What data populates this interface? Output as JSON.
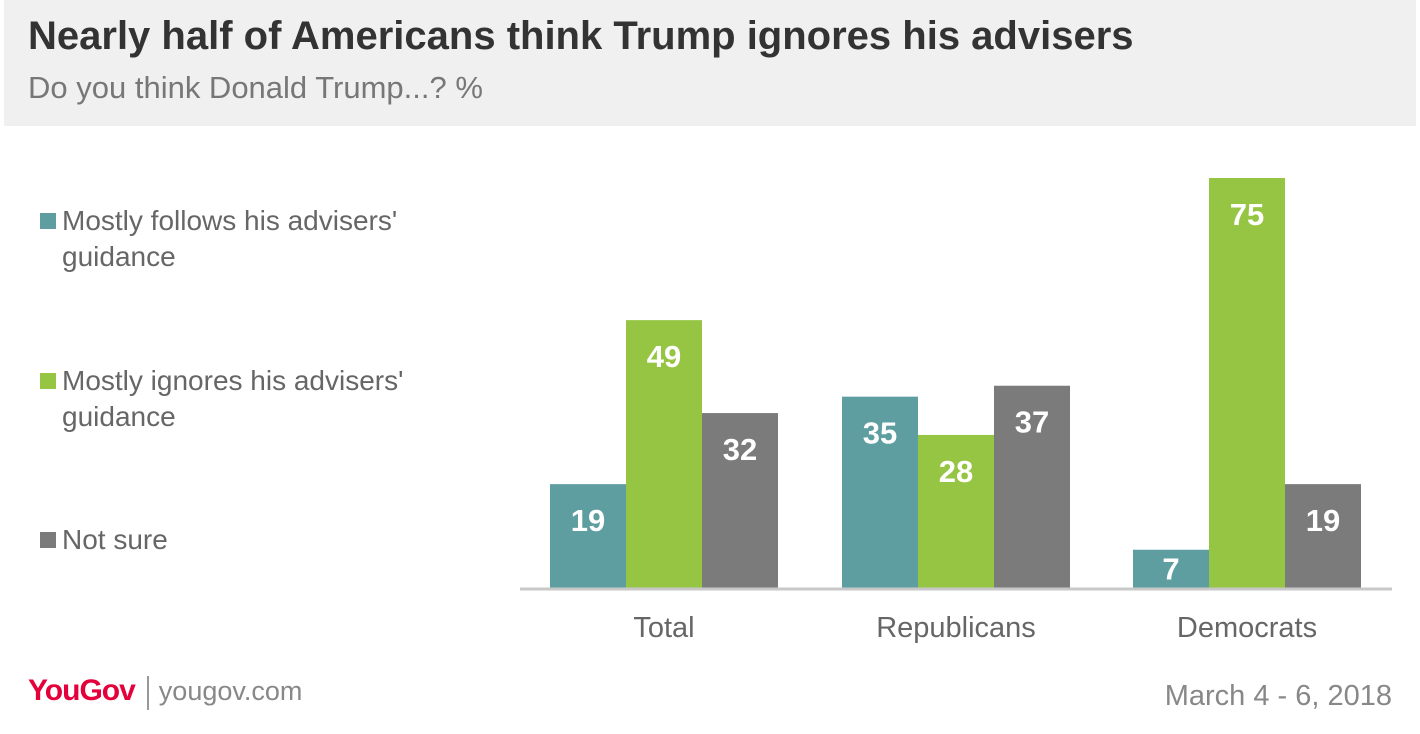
{
  "header": {
    "title": "Nearly half of Americans think Trump ignores his advisers",
    "subtitle": "Do you think Donald Trump...? %"
  },
  "legend": [
    {
      "label": "Mostly follows his advisers' guidance",
      "color": "#5f9ea0"
    },
    {
      "label": "Mostly ignores his advisers' guidance",
      "color": "#96c544"
    },
    {
      "label": "Not sure",
      "color": "#7b7b7b"
    }
  ],
  "chart_data": {
    "type": "bar",
    "title": "Nearly half of Americans think Trump ignores his advisers",
    "subtitle": "Do you think Donald Trump...? %",
    "categories": [
      "Total",
      "Republicans",
      "Democrats"
    ],
    "series": [
      {
        "name": "Mostly follows his advisers' guidance",
        "color": "#5f9ea0",
        "values": [
          19,
          35,
          7
        ]
      },
      {
        "name": "Mostly ignores his advisers' guidance",
        "color": "#96c544",
        "values": [
          49,
          28,
          75
        ]
      },
      {
        "name": "Not sure",
        "color": "#7b7b7b",
        "values": [
          32,
          37,
          19
        ]
      }
    ],
    "xlabel": "",
    "ylabel": "",
    "ylim": [
      0,
      75
    ],
    "grid": false,
    "legend_position": "left",
    "data_labels": true
  },
  "footer": {
    "logo_you": "You",
    "logo_gov": "Gov",
    "url": "yougov.com",
    "date": "March 4 - 6, 2018"
  }
}
